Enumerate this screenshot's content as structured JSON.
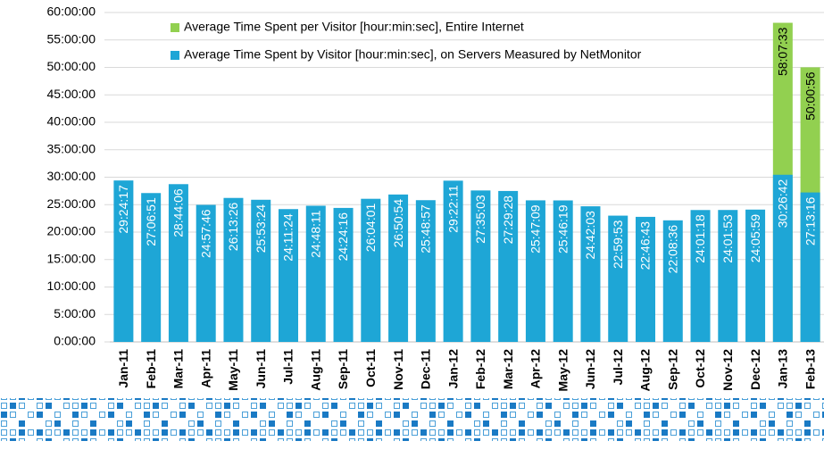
{
  "chart_data": {
    "type": "bar",
    "grid": true,
    "categories": [
      "Jan-11",
      "Feb-11",
      "Mar-11",
      "Apr-11",
      "May-11",
      "Jun-11",
      "Jul-11",
      "Aug-11",
      "Sep-11",
      "Oct-11",
      "Nov-11",
      "Dec-11",
      "Jan-12",
      "Feb-12",
      "Mar-12",
      "Apr-12",
      "May-12",
      "Jun-12",
      "Jul-12",
      "Aug-12",
      "Sep-12",
      "Oct-12",
      "Nov-12",
      "Dec-12",
      "Jan-13",
      "Feb-13"
    ],
    "ylim": [
      0,
      60
    ],
    "yticks": [
      {
        "value": 0,
        "label": "0:00:00"
      },
      {
        "value": 5,
        "label": "5:00:00"
      },
      {
        "value": 10,
        "label": "10:00:00"
      },
      {
        "value": 15,
        "label": "15:00:00"
      },
      {
        "value": 20,
        "label": "20:00:00"
      },
      {
        "value": 25,
        "label": "25:00:00"
      },
      {
        "value": 30,
        "label": "30:00:00"
      },
      {
        "value": 35,
        "label": "35:00:00"
      },
      {
        "value": 40,
        "label": "40:00:00"
      },
      {
        "value": 45,
        "label": "45:00:00"
      },
      {
        "value": 50,
        "label": "50:00:00"
      },
      {
        "value": 55,
        "label": "55:00:00"
      },
      {
        "value": 60,
        "label": "60:00:00"
      }
    ],
    "series": [
      {
        "name": "Average Time Spent by Visitor [hour:min:sec], on Servers Measured by NetMonitor",
        "color": "#1ea6d6",
        "label_color": "#ffffff",
        "values": [
          29.404722,
          27.114167,
          28.735,
          24.962778,
          26.223889,
          25.89,
          24.19,
          24.803056,
          24.404444,
          26.066944,
          26.848333,
          25.815833,
          29.369722,
          27.584167,
          27.491111,
          25.785833,
          25.771944,
          24.700833,
          22.998056,
          22.778611,
          22.143333,
          24.021667,
          24.031389,
          24.099722,
          30.445,
          27.221111
        ],
        "value_labels": [
          "29:24:17",
          "27:06:51",
          "28:44:06",
          "24:57:46",
          "26:13:26",
          "25:53:24",
          "24:11:24",
          "24:48:11",
          "24:24:16",
          "26:04:01",
          "26:50:54",
          "25:48:57",
          "29:22:11",
          "27:35:03",
          "27:29:28",
          "25:47:09",
          "25:46:19",
          "24:42:03",
          "22:59:53",
          "22:46:43",
          "22:08:36",
          "24:01:18",
          "24:01:53",
          "24:05:59",
          "30:26:42",
          "27:13:16"
        ]
      },
      {
        "name": "Average Time Spent per Visitor  [hour:min:sec], Entire Internet",
        "color": "#92d050",
        "label_color": "#000000",
        "values": [
          null,
          null,
          null,
          null,
          null,
          null,
          null,
          null,
          null,
          null,
          null,
          null,
          null,
          null,
          null,
          null,
          null,
          null,
          null,
          null,
          null,
          null,
          null,
          null,
          58.125833,
          50.015556
        ],
        "value_labels": [
          null,
          null,
          null,
          null,
          null,
          null,
          null,
          null,
          null,
          null,
          null,
          null,
          null,
          null,
          null,
          null,
          null,
          null,
          null,
          null,
          null,
          null,
          null,
          null,
          "58:07:33",
          "50:00:56"
        ]
      }
    ]
  }
}
